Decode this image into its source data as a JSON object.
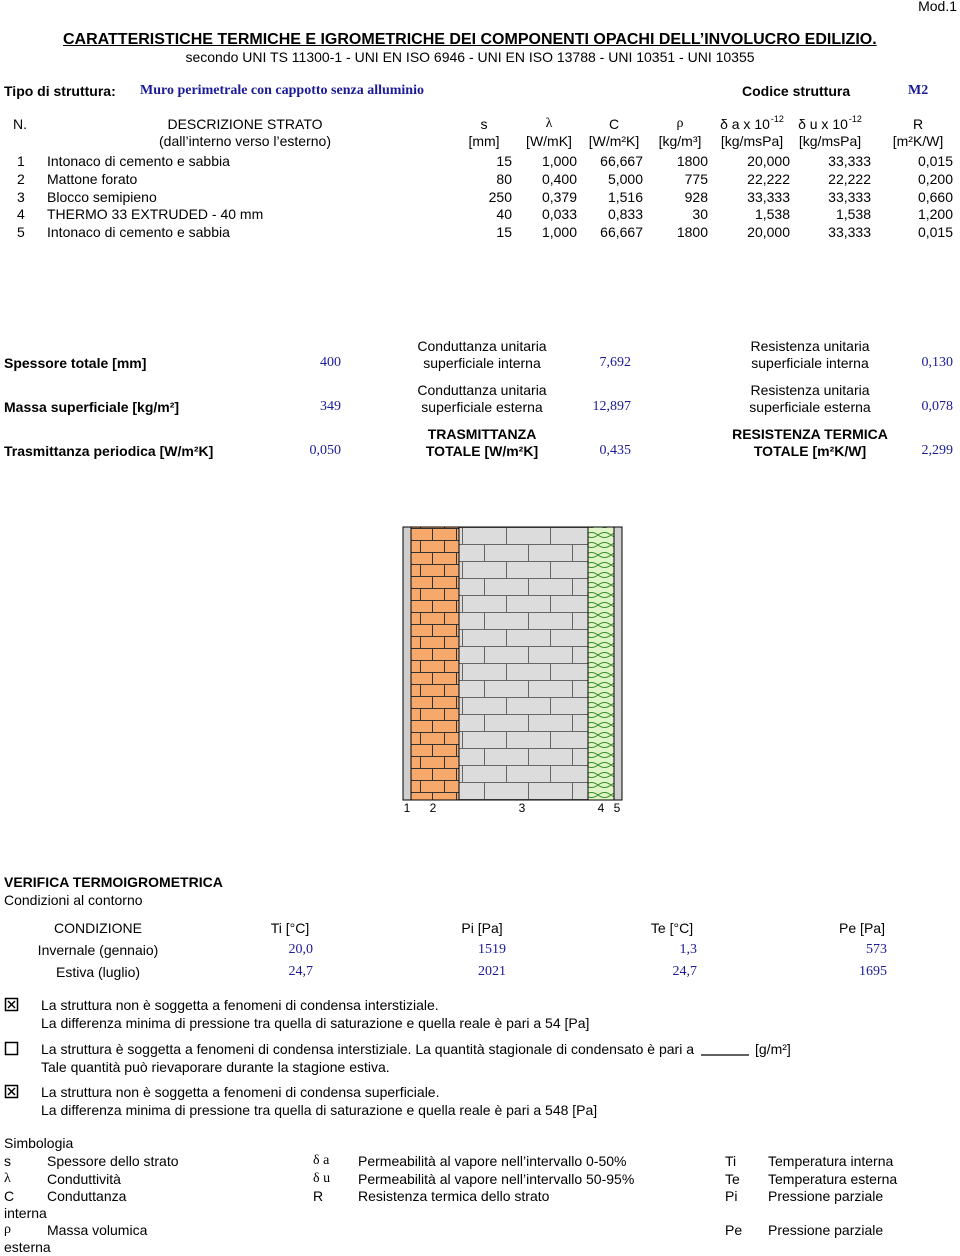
{
  "header": {
    "mod": "Mod.1",
    "title": "CARATTERISTICHE TERMICHE E IGROMETRICHE DEI COMPONENTI OPACHI DELL’INVOLUCRO EDILIZIO.",
    "subtitle": "secondo UNI TS 11300-1 - UNI EN ISO 6946 - UNI EN ISO 13788 - UNI 10351 - UNI 10355"
  },
  "structure": {
    "type_label": "Tipo di struttura:",
    "type_value": "Muro perimetrale con cappotto senza alluminio",
    "code_label": "Codice struttura",
    "code_value": "M2"
  },
  "table": {
    "columns": [
      {
        "label": "N."
      },
      {
        "label": "DESCRIZIONE STRATO",
        "unit": "(dall’interno verso l’esterno)"
      },
      {
        "label": "s",
        "unit": "[mm]"
      },
      {
        "label": "λ",
        "unit": "[W/mK]"
      },
      {
        "label": "C",
        "unit": "[W/m²K]"
      },
      {
        "label": "ρ",
        "unit": "[kg/m³]"
      },
      {
        "label": "δ a x 10",
        "exp": "-12",
        "unit": "[kg/msPa]"
      },
      {
        "label": "δ u x 10",
        "exp": "-12",
        "unit": "[kg/msPa]"
      },
      {
        "label": "R",
        "unit": "[m²K/W]"
      }
    ],
    "rows": [
      [
        "1",
        "Intonaco di cemento e sabbia",
        "15",
        "1,000",
        "66,667",
        "1800",
        "20,000",
        "33,333",
        "0,015"
      ],
      [
        "2",
        "Mattone forato",
        "80",
        "0,400",
        "5,000",
        "775",
        "22,222",
        "22,222",
        "0,200"
      ],
      [
        "3",
        "Blocco semipieno",
        "250",
        "0,379",
        "1,516",
        "928",
        "33,333",
        "33,333",
        "0,660"
      ],
      [
        "4",
        "THERMO 33 EXTRUDED - 40 mm",
        "40",
        "0,033",
        "0,833",
        "30",
        "1,538",
        "1,538",
        "1,200"
      ],
      [
        "5",
        "Intonaco di cemento e sabbia",
        "15",
        "1,000",
        "66,667",
        "1800",
        "20,000",
        "33,333",
        "0,015"
      ]
    ]
  },
  "summary": [
    {
      "label": "Spessore totale [mm]",
      "value": "400",
      "conductance": {
        "lines": [
          "Conduttanza unitaria",
          "superficiale interna"
        ],
        "value": "7,692"
      },
      "resistance": {
        "lines": [
          "Resistenza unitaria",
          "superficiale interna"
        ],
        "value": "0,130"
      }
    },
    {
      "label": "Massa superficiale [kg/m²]",
      "value": "349",
      "conductance": {
        "lines": [
          "Conduttanza unitaria",
          "superficiale esterna"
        ],
        "value": "12,897"
      },
      "resistance": {
        "lines": [
          "Resistenza unitaria",
          "superficiale esterna"
        ],
        "value": "0,078"
      }
    },
    {
      "label": "Trasmittanza periodica [W/m²K]",
      "value": "0,050",
      "conductance": {
        "lines": [
          "TRASMITTANZA",
          "TOTALE [W/m²K]"
        ],
        "value": "0,435"
      },
      "resistance": {
        "lines": [
          "RESISTENZA TERMICA",
          "TOTALE [m²K/W]"
        ],
        "value": "2,299"
      }
    }
  ],
  "diagram": {
    "labels": [
      "1",
      "2",
      "3",
      "4",
      "5"
    ]
  },
  "verification": {
    "title": "VERIFICA TERMOIGROMETRICA",
    "subtitle": "Condizioni al contorno",
    "header": [
      "CONDIZIONE",
      "Ti [°C]",
      "Pi [Pa]",
      "Te [°C]",
      "Pe [Pa]"
    ],
    "rows": [
      [
        "Invernale (gennaio)",
        "20,0",
        "1519",
        "1,3",
        "573"
      ],
      [
        "Estiva (luglio)",
        "24,7",
        "2021",
        "24,7",
        "1695"
      ]
    ]
  },
  "checks": [
    {
      "checked": true,
      "text": "La struttura non è soggetta a fenomeni di condensa interstiziale.",
      "note": "La differenza minima di pressione tra quella di saturazione e quella reale è pari a 54 [Pa]"
    },
    {
      "checked": false,
      "text": "La struttura è soggetta a fenomeni di condensa interstiziale. La quantità stagionale di condensato è pari a",
      "unit": "[g/m²]",
      "note": "Tale quantità  può rievaporare durante la stagione estiva."
    },
    {
      "checked": true,
      "text": "La struttura non è soggetta a fenomeni di condensa superficiale.",
      "note": "La differenza minima di pressione tra quella di saturazione e quella reale è pari a 548 [Pa]"
    }
  ],
  "symbols": {
    "title": "Simbologia",
    "col1": [
      {
        "symbol": "s",
        "text": "Spessore dello strato"
      },
      {
        "symbol": "λ",
        "text": "Conduttività"
      },
      {
        "symbol": "C",
        "text": "Conduttanza"
      },
      {
        "symbol": "ρ",
        "text": "Massa volumica"
      }
    ],
    "col2": [
      {
        "symbol": "δ a",
        "text": "Permeabilità al vapore nell’intervallo 0-50%"
      },
      {
        "symbol": "δ u",
        "text": "Permeabilità al vapore nell’intervallo 50-95%"
      },
      {
        "symbol": "R",
        "text": "Resistenza termica dello strato"
      }
    ],
    "col3": [
      {
        "symbol": "Ti",
        "text": "Temperatura interna"
      },
      {
        "symbol": "Te",
        "text": "Temperatura esterna"
      },
      {
        "symbol": "Pi",
        "text": "Pressione parziale",
        "wrap": "interna"
      },
      {
        "symbol": "Pe",
        "text": "Pressione parziale",
        "wrap": "esterna"
      }
    ]
  }
}
